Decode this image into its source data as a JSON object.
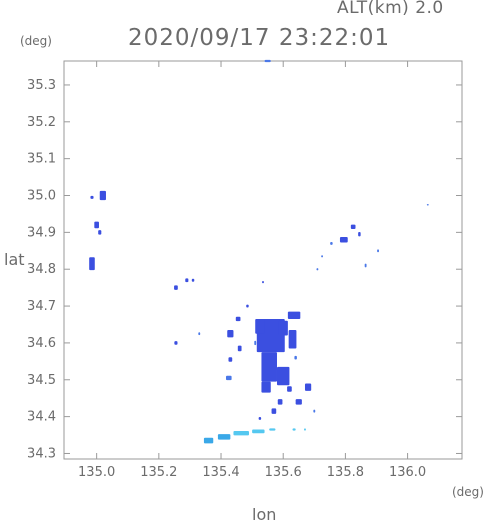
{
  "header": {
    "altitude": "ALT(km) 2.0",
    "timestamp": "2020/09/17 23:22:01"
  },
  "chart_data": {
    "type": "heatmap",
    "title": "2020/09/17 23:22:01",
    "xlabel": "lon",
    "ylabel": "lat",
    "x_unit": "(deg)",
    "y_unit": "(deg)",
    "xlim": [
      134.895,
      136.175
    ],
    "ylim": [
      34.285,
      35.365
    ],
    "x_ticks": [
      135.0,
      135.2,
      135.4,
      135.6,
      135.8,
      136.0
    ],
    "x_tick_labels": [
      "135.0",
      "135.2",
      "135.4",
      "135.6",
      "135.8",
      "136.0"
    ],
    "y_ticks": [
      34.3,
      34.4,
      34.5,
      34.6,
      34.7,
      34.8,
      34.9,
      35.0,
      35.1,
      35.2,
      35.3
    ],
    "y_tick_labels": [
      "34.3",
      "34.4",
      "34.5",
      "34.6",
      "34.7",
      "34.8",
      "34.9",
      "35.0",
      "35.1",
      "35.2",
      "35.3"
    ],
    "grid": false,
    "colors": {
      "frame": "#9a9a9a",
      "echo_strong": "#3b4fe0",
      "echo_medium": "#4a78e8",
      "echo_light": "#3aa8e8",
      "echo_faint": "#55c8f0"
    },
    "echoes": [
      {
        "lon": 135.02,
        "lat": 35.0,
        "w": 0.02,
        "h": 0.025,
        "level": "strong"
      },
      {
        "lon": 134.985,
        "lat": 34.995,
        "w": 0.01,
        "h": 0.008,
        "level": "strong"
      },
      {
        "lon": 135.0,
        "lat": 34.92,
        "w": 0.015,
        "h": 0.018,
        "level": "strong"
      },
      {
        "lon": 135.01,
        "lat": 34.9,
        "w": 0.01,
        "h": 0.012,
        "level": "strong"
      },
      {
        "lon": 134.985,
        "lat": 34.815,
        "w": 0.018,
        "h": 0.035,
        "level": "strong"
      },
      {
        "lon": 135.255,
        "lat": 34.75,
        "w": 0.012,
        "h": 0.012,
        "level": "strong"
      },
      {
        "lon": 135.29,
        "lat": 34.77,
        "w": 0.01,
        "h": 0.01,
        "level": "strong"
      },
      {
        "lon": 135.31,
        "lat": 34.77,
        "w": 0.008,
        "h": 0.008,
        "level": "strong"
      },
      {
        "lon": 135.535,
        "lat": 34.765,
        "w": 0.006,
        "h": 0.006,
        "level": "strong"
      },
      {
        "lon": 135.825,
        "lat": 34.915,
        "w": 0.015,
        "h": 0.012,
        "level": "strong"
      },
      {
        "lon": 135.845,
        "lat": 34.895,
        "w": 0.008,
        "h": 0.012,
        "level": "strong"
      },
      {
        "lon": 135.795,
        "lat": 34.88,
        "w": 0.025,
        "h": 0.015,
        "level": "strong"
      },
      {
        "lon": 135.755,
        "lat": 34.87,
        "w": 0.008,
        "h": 0.008,
        "level": "medium"
      },
      {
        "lon": 135.725,
        "lat": 34.835,
        "w": 0.006,
        "h": 0.006,
        "level": "medium"
      },
      {
        "lon": 135.71,
        "lat": 34.8,
        "w": 0.006,
        "h": 0.006,
        "level": "medium"
      },
      {
        "lon": 135.865,
        "lat": 34.81,
        "w": 0.006,
        "h": 0.01,
        "level": "medium"
      },
      {
        "lon": 135.905,
        "lat": 34.85,
        "w": 0.006,
        "h": 0.008,
        "level": "medium"
      },
      {
        "lon": 136.065,
        "lat": 34.975,
        "w": 0.006,
        "h": 0.004,
        "level": "medium"
      },
      {
        "lon": 135.485,
        "lat": 34.7,
        "w": 0.008,
        "h": 0.008,
        "level": "strong"
      },
      {
        "lon": 135.455,
        "lat": 34.665,
        "w": 0.015,
        "h": 0.012,
        "level": "strong"
      },
      {
        "lon": 135.43,
        "lat": 34.625,
        "w": 0.02,
        "h": 0.02,
        "level": "strong"
      },
      {
        "lon": 135.46,
        "lat": 34.585,
        "w": 0.012,
        "h": 0.015,
        "level": "strong"
      },
      {
        "lon": 135.43,
        "lat": 34.555,
        "w": 0.012,
        "h": 0.012,
        "level": "strong"
      },
      {
        "lon": 135.425,
        "lat": 34.505,
        "w": 0.018,
        "h": 0.012,
        "level": "medium"
      },
      {
        "lon": 135.255,
        "lat": 34.6,
        "w": 0.01,
        "h": 0.01,
        "level": "strong"
      },
      {
        "lon": 135.33,
        "lat": 34.625,
        "w": 0.006,
        "h": 0.008,
        "level": "medium"
      },
      {
        "lon": 135.56,
        "lat": 34.62,
        "w": 0.09,
        "h": 0.09,
        "level": "strong"
      },
      {
        "lon": 135.525,
        "lat": 34.645,
        "w": 0.03,
        "h": 0.04,
        "level": "strong"
      },
      {
        "lon": 135.6,
        "lat": 34.64,
        "w": 0.03,
        "h": 0.04,
        "level": "strong"
      },
      {
        "lon": 135.635,
        "lat": 34.675,
        "w": 0.04,
        "h": 0.02,
        "level": "strong"
      },
      {
        "lon": 135.63,
        "lat": 34.61,
        "w": 0.025,
        "h": 0.05,
        "level": "strong"
      },
      {
        "lon": 135.555,
        "lat": 34.535,
        "w": 0.05,
        "h": 0.08,
        "level": "strong"
      },
      {
        "lon": 135.6,
        "lat": 34.51,
        "w": 0.04,
        "h": 0.05,
        "level": "strong"
      },
      {
        "lon": 135.545,
        "lat": 34.48,
        "w": 0.03,
        "h": 0.03,
        "level": "strong"
      },
      {
        "lon": 135.62,
        "lat": 34.475,
        "w": 0.015,
        "h": 0.015,
        "level": "strong"
      },
      {
        "lon": 135.68,
        "lat": 34.48,
        "w": 0.02,
        "h": 0.02,
        "level": "strong"
      },
      {
        "lon": 135.59,
        "lat": 34.44,
        "w": 0.015,
        "h": 0.015,
        "level": "strong"
      },
      {
        "lon": 135.65,
        "lat": 34.44,
        "w": 0.02,
        "h": 0.015,
        "level": "strong"
      },
      {
        "lon": 135.57,
        "lat": 34.415,
        "w": 0.015,
        "h": 0.015,
        "level": "strong"
      },
      {
        "lon": 135.525,
        "lat": 34.395,
        "w": 0.008,
        "h": 0.008,
        "level": "strong"
      },
      {
        "lon": 135.51,
        "lat": 34.6,
        "w": 0.006,
        "h": 0.012,
        "level": "medium"
      },
      {
        "lon": 135.64,
        "lat": 34.56,
        "w": 0.008,
        "h": 0.01,
        "level": "medium"
      },
      {
        "lon": 135.7,
        "lat": 34.415,
        "w": 0.006,
        "h": 0.008,
        "level": "medium"
      },
      {
        "lon": 135.36,
        "lat": 34.335,
        "w": 0.03,
        "h": 0.015,
        "level": "light"
      },
      {
        "lon": 135.41,
        "lat": 34.345,
        "w": 0.04,
        "h": 0.015,
        "level": "light"
      },
      {
        "lon": 135.465,
        "lat": 34.355,
        "w": 0.05,
        "h": 0.012,
        "level": "faint"
      },
      {
        "lon": 135.52,
        "lat": 34.36,
        "w": 0.04,
        "h": 0.01,
        "level": "faint"
      },
      {
        "lon": 135.565,
        "lat": 34.365,
        "w": 0.02,
        "h": 0.006,
        "level": "faint"
      },
      {
        "lon": 135.635,
        "lat": 34.365,
        "w": 0.01,
        "h": 0.006,
        "level": "faint"
      },
      {
        "lon": 135.67,
        "lat": 34.365,
        "w": 0.006,
        "h": 0.006,
        "level": "faint"
      },
      {
        "lon": 135.55,
        "lat": 35.365,
        "w": 0.02,
        "h": 0.006,
        "level": "medium"
      }
    ]
  }
}
